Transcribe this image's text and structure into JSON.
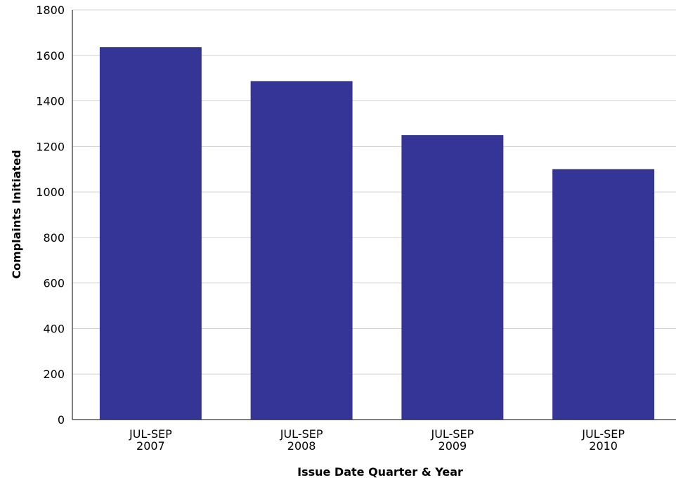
{
  "chart_data": {
    "type": "bar",
    "categories": [
      [
        "JUL-SEP",
        "2007"
      ],
      [
        "JUL-SEP",
        "2008"
      ],
      [
        "JUL-SEP",
        "2009"
      ],
      [
        "JUL-SEP",
        "2010"
      ]
    ],
    "values": [
      1636,
      1487,
      1250,
      1100
    ],
    "title": "",
    "xlabel": "Issue Date Quarter & Year",
    "ylabel": "Complaints Initiated",
    "ylim": [
      0,
      1800
    ],
    "yticks": [
      0,
      200,
      400,
      600,
      800,
      1000,
      1200,
      1400,
      1600,
      1800
    ],
    "grid": true,
    "bar_color": "#353598",
    "legend": "none"
  }
}
